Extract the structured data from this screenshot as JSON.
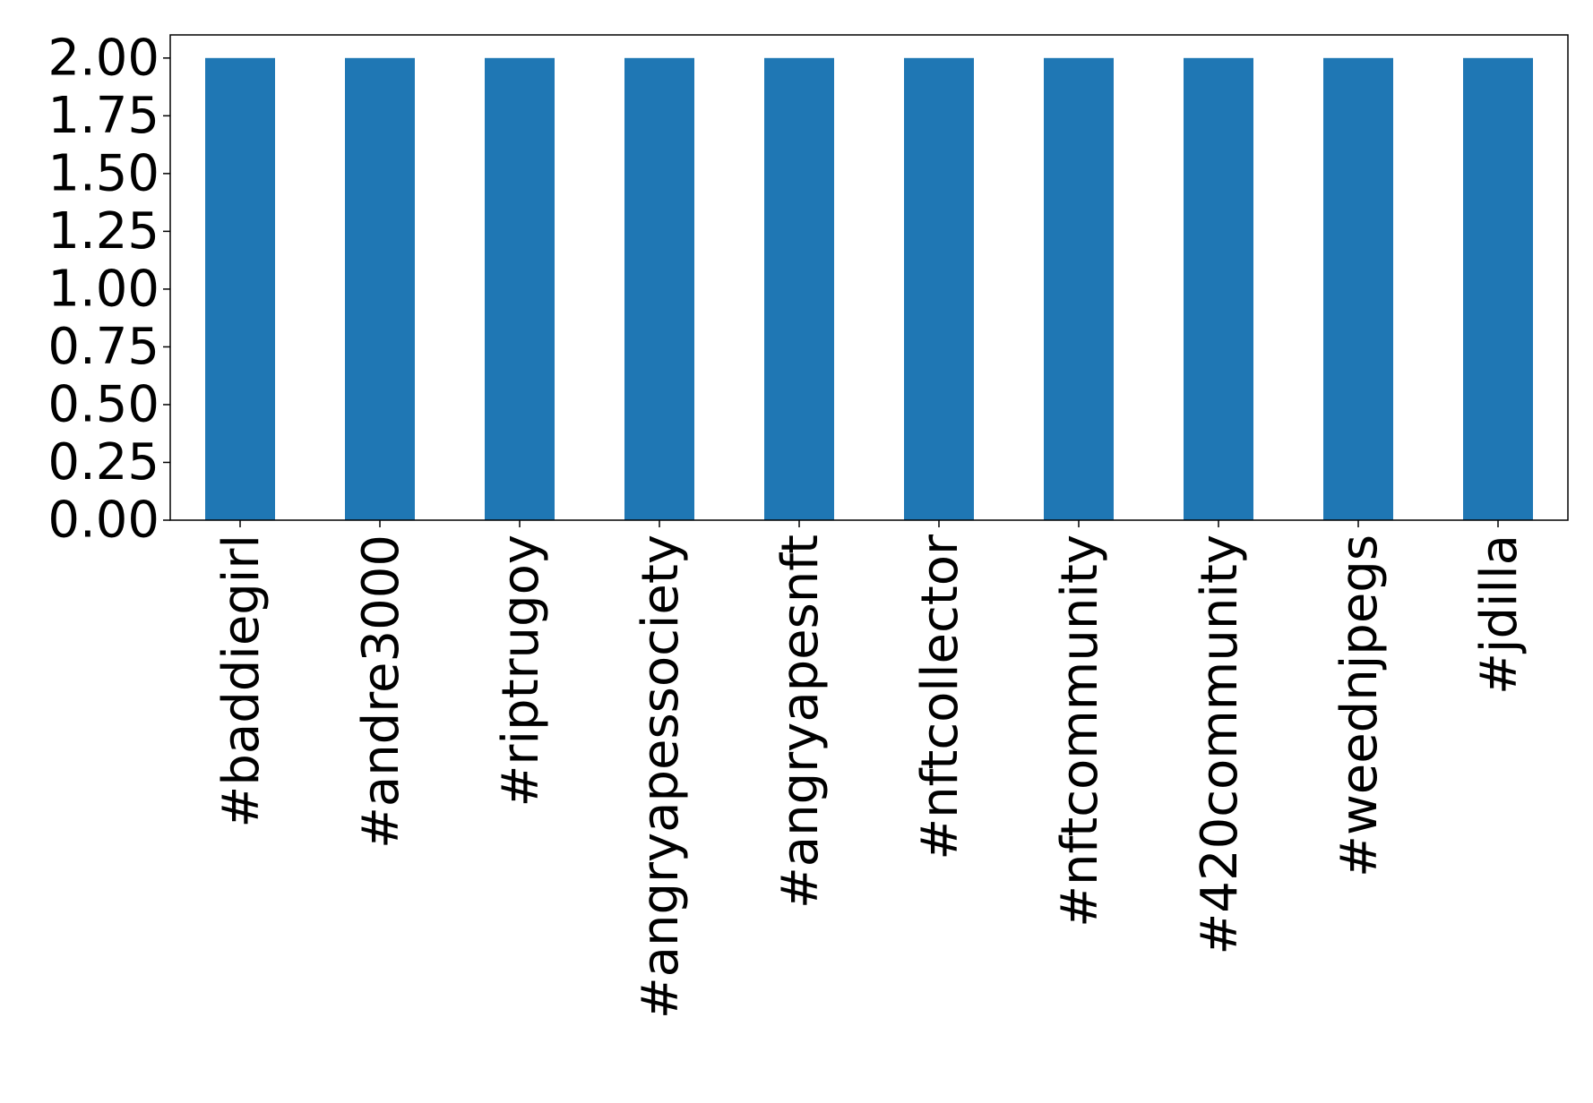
{
  "chart_data": {
    "type": "bar",
    "title": "",
    "xlabel": "",
    "ylabel": "",
    "categories": [
      "#baddiegirl",
      "#andre3000",
      "#riptrugoy",
      "#angryapessociety",
      "#angryapesnft",
      "#nftcollector",
      "#nftcommunity",
      "#420community",
      "#weednjpegs",
      "#jdilla"
    ],
    "values": [
      2,
      2,
      2,
      2,
      2,
      2,
      2,
      2,
      2,
      2
    ],
    "ylim": [
      0,
      2.1
    ],
    "yticks": [
      0.0,
      0.25,
      0.5,
      0.75,
      1.0,
      1.25,
      1.5,
      1.75,
      2.0
    ],
    "ytick_labels": [
      "0.00",
      "0.25",
      "0.50",
      "0.75",
      "1.00",
      "1.25",
      "1.50",
      "1.75",
      "2.00"
    ],
    "bar_color": "#1f77b4",
    "grid": false,
    "legend": "none"
  }
}
